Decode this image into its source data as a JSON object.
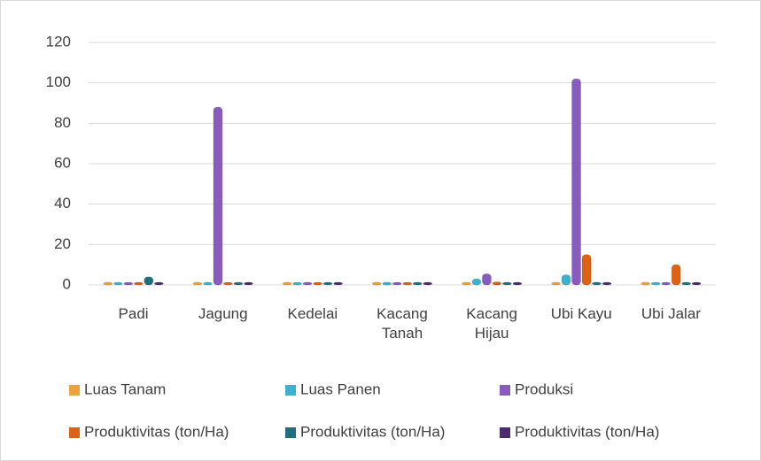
{
  "chart_data": {
    "type": "bar",
    "categories": [
      "Padi",
      "Jagung",
      "Kedelai",
      "Kacang Tanah",
      "Kacang Hijau",
      "Ubi Kayu",
      "Ubi Jalar"
    ],
    "series": [
      {
        "name": "Luas Tanam",
        "color": "#eca33a",
        "values": [
          0,
          0,
          0,
          0,
          0,
          0,
          0
        ]
      },
      {
        "name": "Luas Panen",
        "color": "#3bb3cc",
        "values": [
          0,
          0,
          0,
          0,
          3,
          5,
          1
        ]
      },
      {
        "name": "Produksi",
        "color": "#8a5bbf",
        "values": [
          0,
          88,
          1,
          0,
          5.5,
          102,
          0
        ]
      },
      {
        "name": "Produktivitas (ton/Ha)",
        "color": "#df6214",
        "values": [
          0,
          0,
          0,
          0,
          1.5,
          15,
          10
        ]
      },
      {
        "name": "Produktivitas (ton/Ha)",
        "color": "#1e6f80",
        "values": [
          4,
          0,
          0,
          0,
          0,
          0,
          0
        ]
      },
      {
        "name": "Produktivitas (ton/Ha)",
        "color": "#4b2a70",
        "values": [
          0,
          0,
          0,
          0,
          0,
          0,
          0
        ]
      }
    ],
    "ylim": [
      0,
      120
    ],
    "yticks": [
      0,
      20,
      40,
      60,
      80,
      100,
      120
    ],
    "grid": true
  }
}
